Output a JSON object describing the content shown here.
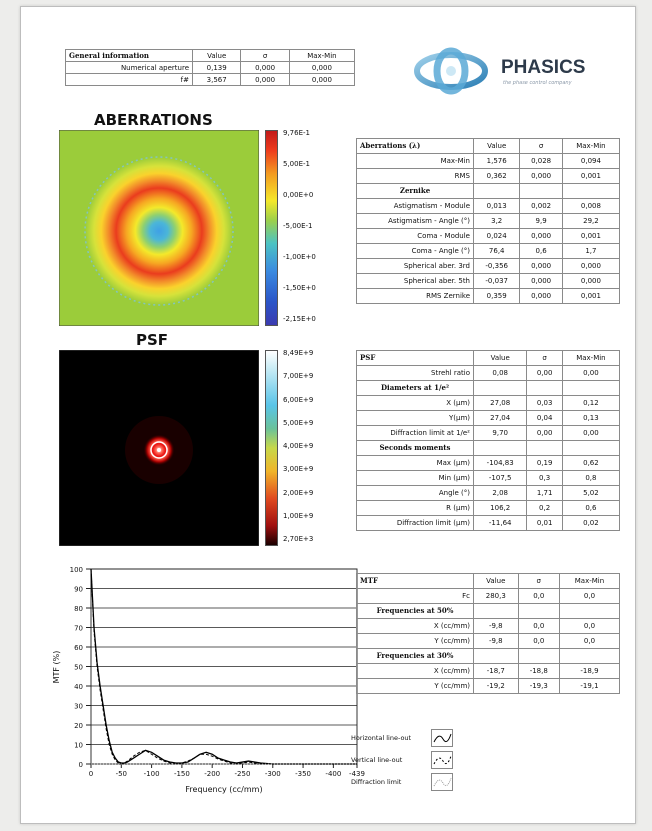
{
  "general": {
    "headers": [
      "General information",
      "Value",
      "σ",
      "Max-Min"
    ],
    "rows": [
      [
        "Numerical aperture",
        "0,139",
        "0,000",
        "0,000"
      ],
      [
        "f#",
        "3,567",
        "0,000",
        "0,000"
      ]
    ]
  },
  "logo": {
    "name": "PHASICS",
    "tagline": "the phase control company"
  },
  "aberrations": {
    "title": "ABERRATIONS",
    "colorbar_ticks": [
      "9,76E-1",
      "5,00E-1",
      "0,00E+0",
      "-5,00E-1",
      "-1,00E+0",
      "-1,50E+0",
      "-2,15E+0"
    ],
    "table": {
      "headers": [
        "Aberrations (λ)",
        "Value",
        "σ",
        "Max-Min"
      ],
      "rows": [
        [
          "Max-Min",
          "1,576",
          "0,028",
          "0,094"
        ],
        [
          "RMS",
          "0,362",
          "0,000",
          "0,001"
        ]
      ],
      "section": "Zernike",
      "rows2": [
        [
          "Astigmatism - Module",
          "0,013",
          "0,002",
          "0,008"
        ],
        [
          "Astigmatism - Angle (°)",
          "3,2",
          "9,9",
          "29,2"
        ],
        [
          "Coma - Module",
          "0,024",
          "0,000",
          "0,001"
        ],
        [
          "Coma - Angle (°)",
          "76,4",
          "0,6",
          "1,7"
        ],
        [
          "Spherical aber. 3rd",
          "-0,356",
          "0,000",
          "0,000"
        ],
        [
          "Spherical aber. 5th",
          "-0,037",
          "0,000",
          "0,000"
        ],
        [
          "RMS Zernike",
          "0,359",
          "0,000",
          "0,001"
        ]
      ]
    }
  },
  "psf": {
    "title": "PSF",
    "colorbar_ticks": [
      "8,49E+9",
      "7,00E+9",
      "6,00E+9",
      "5,00E+9",
      "4,00E+9",
      "3,00E+9",
      "2,00E+9",
      "1,00E+9",
      "2,70E+3"
    ],
    "table": {
      "headers": [
        "PSF",
        "Value",
        "σ",
        "Max-Min"
      ],
      "rows": [
        [
          "Strehl ratio",
          "0,08",
          "0,00",
          "0,00"
        ]
      ],
      "section1": "Diameters at 1/e²",
      "rows1": [
        [
          "X (µm)",
          "27,08",
          "0,03",
          "0,12"
        ],
        [
          "Y(µm)",
          "27,04",
          "0,04",
          "0,13"
        ],
        [
          "Diffraction limit at 1/e²",
          "9,70",
          "0,00",
          "0,00"
        ]
      ],
      "section2": "Seconds moments",
      "rows2": [
        [
          "Max (µm)",
          "-104,83",
          "0,19",
          "0,62"
        ],
        [
          "Min (µm)",
          "-107,5",
          "0,3",
          "0,8"
        ],
        [
          "Angle (°)",
          "2,08",
          "1,71",
          "5,02"
        ],
        [
          "R (µm)",
          "106,2",
          "0,2",
          "0,6"
        ],
        [
          "Diffraction limit (µm)",
          "-11,64",
          "0,01",
          "0,02"
        ]
      ]
    }
  },
  "mtf": {
    "table": {
      "headers": [
        "MTF",
        "Value",
        "σ",
        "Max-Min"
      ],
      "rows": [
        [
          "Fc",
          "280,3",
          "0,0",
          "0,0"
        ]
      ],
      "section1": "Frequencies at 50%",
      "rows1": [
        [
          "X (cc/mm)",
          "-9,8",
          "0,0",
          "0,0"
        ],
        [
          "Y (cc/mm)",
          "-9,8",
          "0,0",
          "0,0"
        ]
      ],
      "section2": "Frequencies at 30%",
      "rows2": [
        [
          "X (cc/mm)",
          "-18,7",
          "-18,8",
          "-18,9"
        ],
        [
          "Y (cc/mm)",
          "-19,2",
          "-19,3",
          "-19,1"
        ]
      ]
    },
    "legend": [
      "Horizontal line-out",
      "Vertical line-out",
      "Diffraction limit"
    ]
  },
  "chart_data": {
    "type": "line",
    "xlabel": "Frequency (cc/mm)",
    "ylabel": "MTF (%)",
    "xlim": [
      0,
      439
    ],
    "ylim": [
      0,
      100
    ],
    "x_ticks": [
      "0",
      "-50",
      "-100",
      "-150",
      "-200",
      "-250",
      "-300",
      "-350",
      "-400",
      "-439"
    ],
    "y_ticks": [
      0,
      10,
      20,
      30,
      40,
      50,
      60,
      70,
      80,
      90,
      100
    ],
    "grid": true,
    "series": [
      {
        "name": "Horizontal line-out",
        "style": "solid",
        "x": [
          0,
          5,
          10,
          15,
          20,
          25,
          30,
          35,
          40,
          45,
          50,
          55,
          60,
          70,
          80,
          90,
          100,
          110,
          120,
          130,
          140,
          150,
          160,
          170,
          180,
          190,
          200,
          210,
          220,
          230,
          240,
          250,
          260,
          270,
          280,
          300,
          350,
          400,
          439
        ],
        "y": [
          100,
          70,
          52,
          40,
          30,
          20,
          12,
          6,
          3,
          1,
          0.5,
          0.5,
          1,
          3,
          5,
          7,
          6,
          4,
          2,
          1,
          0.5,
          0.5,
          1,
          3,
          5,
          6,
          5,
          3,
          2,
          1,
          0.5,
          1,
          1.5,
          1,
          0.5,
          0,
          0,
          0,
          0
        ]
      },
      {
        "name": "Vertical line-out",
        "style": "dashed",
        "x": [
          0,
          5,
          10,
          15,
          20,
          25,
          30,
          35,
          40,
          45,
          50,
          55,
          60,
          70,
          80,
          90,
          100,
          110,
          120,
          130,
          140,
          150,
          160,
          170,
          180,
          190,
          200,
          210,
          220,
          230,
          240,
          250,
          260,
          270,
          280,
          300,
          350,
          400,
          439
        ],
        "y": [
          100,
          68,
          50,
          38,
          28,
          18,
          10,
          5,
          2,
          0.5,
          0,
          0.5,
          1.5,
          4,
          6,
          7,
          5,
          3,
          1.5,
          0.5,
          0,
          0.5,
          1.5,
          3,
          5,
          5,
          4,
          2.5,
          1.5,
          0.5,
          0,
          0.5,
          1,
          0.5,
          0,
          0,
          0,
          0,
          0
        ]
      },
      {
        "name": "Diffraction limit",
        "style": "dotted",
        "x": [
          0,
          50,
          100,
          150,
          200,
          250,
          300,
          350,
          400,
          439
        ],
        "y": [
          0,
          0,
          0,
          0,
          0,
          0,
          0,
          0,
          0,
          0
        ]
      }
    ]
  }
}
